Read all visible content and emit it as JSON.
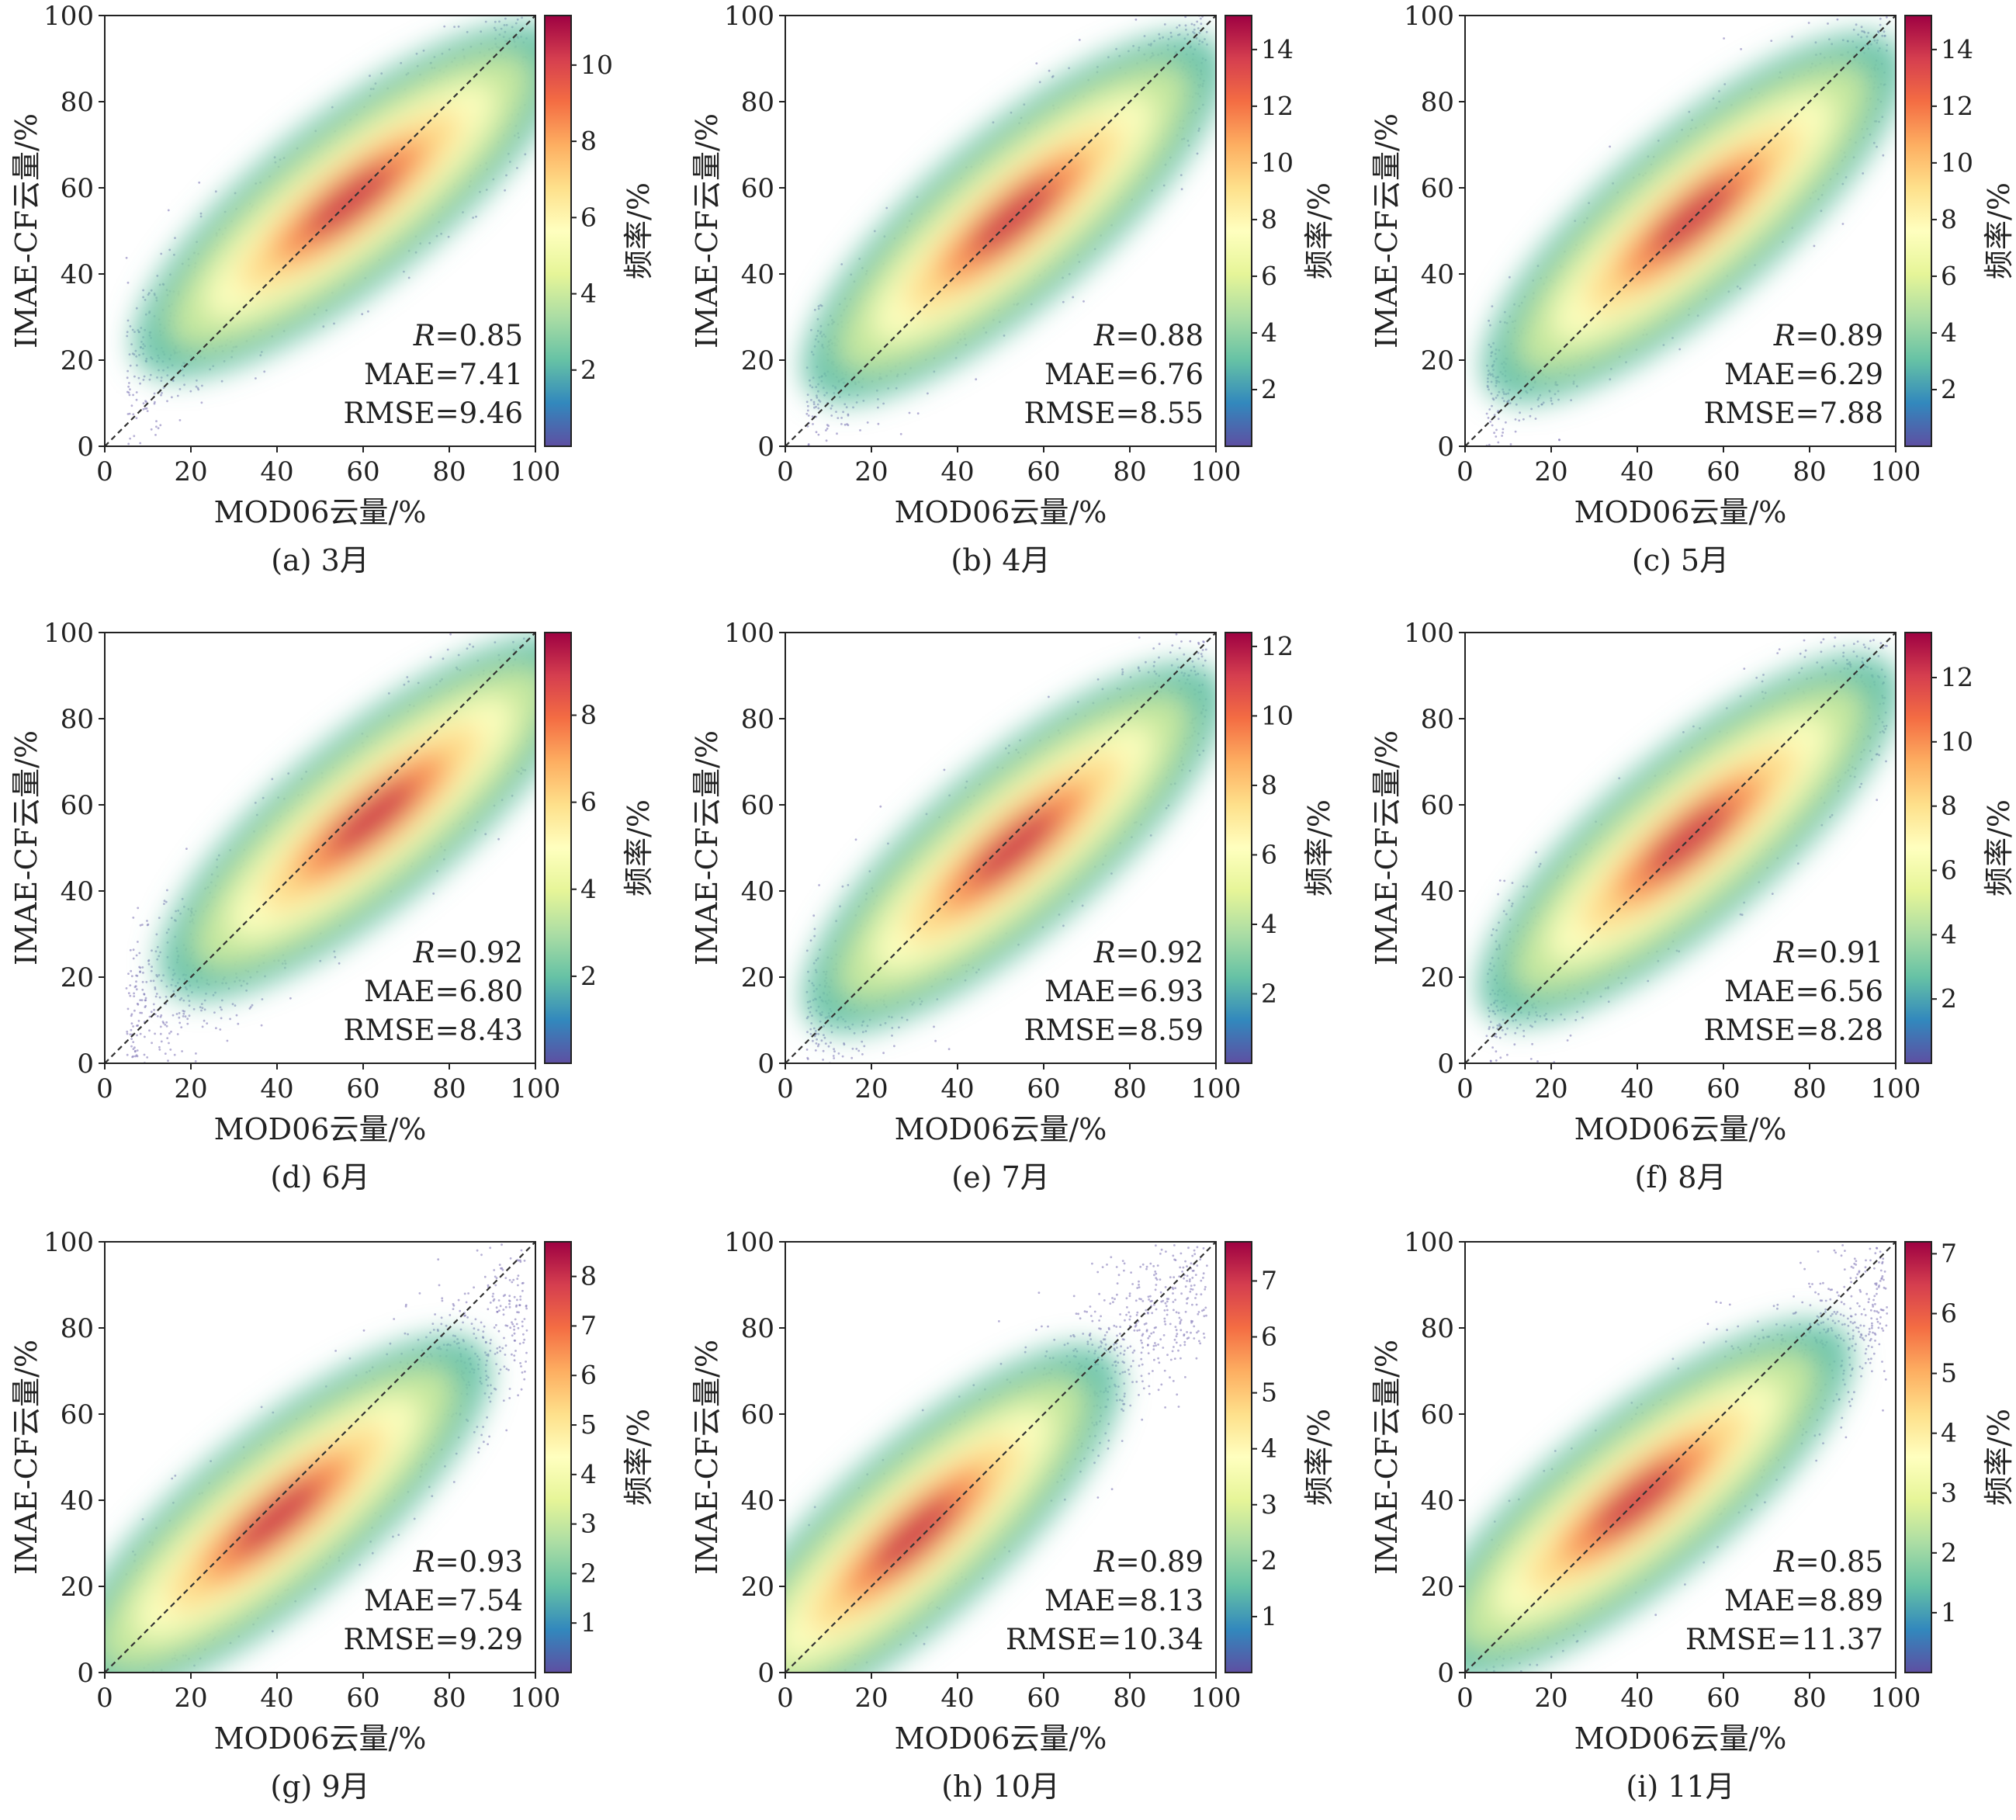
{
  "chart_data": [
    {
      "type": "scatter",
      "panel_label": "(a) 3月",
      "xlabel": "MOD06云量/%",
      "ylabel": "IMAE-CF云量/%",
      "xlim": [
        0,
        100
      ],
      "ylim": [
        0,
        100
      ],
      "xticks": [
        0,
        20,
        40,
        60,
        80,
        100
      ],
      "yticks": [
        0,
        20,
        40,
        60,
        80,
        100
      ],
      "reference_line": "1:1",
      "stats": {
        "R": "0.85",
        "MAE": "7.41",
        "RMSE": "9.46"
      },
      "colorbar": {
        "label": "频率/%",
        "min": 0,
        "max": 11.3,
        "ticks": [
          2,
          4,
          6,
          8,
          10
        ]
      },
      "density": {
        "peak_x": 57,
        "peak_y": 57,
        "slope": 0.78
      }
    },
    {
      "type": "scatter",
      "panel_label": "(b) 4月",
      "xlabel": "MOD06云量/%",
      "ylabel": "IMAE-CF云量/%",
      "xlim": [
        0,
        100
      ],
      "ylim": [
        0,
        100
      ],
      "xticks": [
        0,
        20,
        40,
        60,
        80,
        100
      ],
      "yticks": [
        0,
        20,
        40,
        60,
        80,
        100
      ],
      "reference_line": "1:1",
      "stats": {
        "R": "0.88",
        "MAE": "6.76",
        "RMSE": "8.55"
      },
      "colorbar": {
        "label": "频率/%",
        "min": 0,
        "max": 15.2,
        "ticks": [
          2,
          4,
          6,
          8,
          10,
          12,
          14
        ]
      },
      "density": {
        "peak_x": 53,
        "peak_y": 53,
        "slope": 0.85
      }
    },
    {
      "type": "scatter",
      "panel_label": "(c) 5月",
      "xlabel": "MOD06云量/%",
      "ylabel": "IMAE-CF云量/%",
      "xlim": [
        0,
        100
      ],
      "ylim": [
        0,
        100
      ],
      "xticks": [
        0,
        20,
        40,
        60,
        80,
        100
      ],
      "yticks": [
        0,
        20,
        40,
        60,
        80,
        100
      ],
      "reference_line": "1:1",
      "stats": {
        "R": "0.89",
        "MAE": "6.29",
        "RMSE": "7.88"
      },
      "colorbar": {
        "label": "频率/%",
        "min": 0,
        "max": 15.2,
        "ticks": [
          2,
          4,
          6,
          8,
          10,
          12,
          14
        ]
      },
      "density": {
        "peak_x": 53,
        "peak_y": 53,
        "slope": 0.85
      }
    },
    {
      "type": "scatter",
      "panel_label": "(d) 6月",
      "xlabel": "MOD06云量/%",
      "ylabel": "IMAE-CF云量/%",
      "xlim": [
        0,
        100
      ],
      "ylim": [
        0,
        100
      ],
      "xticks": [
        0,
        20,
        40,
        60,
        80,
        100
      ],
      "yticks": [
        0,
        20,
        40,
        60,
        80,
        100
      ],
      "reference_line": "1:1",
      "stats": {
        "R": "0.92",
        "MAE": "6.80",
        "RMSE": "8.43"
      },
      "colorbar": {
        "label": "频率/%",
        "min": 0,
        "max": 9.9,
        "ticks": [
          2,
          4,
          6,
          8
        ]
      },
      "density": {
        "peak_x": 62,
        "peak_y": 57,
        "slope": 0.82
      }
    },
    {
      "type": "scatter",
      "panel_label": "(e) 7月",
      "xlabel": "MOD06云量/%",
      "ylabel": "IMAE-CF云量/%",
      "xlim": [
        0,
        100
      ],
      "ylim": [
        0,
        100
      ],
      "xticks": [
        0,
        20,
        40,
        60,
        80,
        100
      ],
      "yticks": [
        0,
        20,
        40,
        60,
        80,
        100
      ],
      "reference_line": "1:1",
      "stats": {
        "R": "0.92",
        "MAE": "6.93",
        "RMSE": "8.59"
      },
      "colorbar": {
        "label": "频率/%",
        "min": 0,
        "max": 12.4,
        "ticks": [
          2,
          4,
          6,
          8,
          10,
          12
        ]
      },
      "density": {
        "peak_x": 53,
        "peak_y": 50,
        "slope": 0.85
      }
    },
    {
      "type": "scatter",
      "panel_label": "(f) 8月",
      "xlabel": "MOD06云量/%",
      "ylabel": "IMAE-CF云量/%",
      "xlim": [
        0,
        100
      ],
      "ylim": [
        0,
        100
      ],
      "xticks": [
        0,
        20,
        40,
        60,
        80,
        100
      ],
      "yticks": [
        0,
        20,
        40,
        60,
        80,
        100
      ],
      "reference_line": "1:1",
      "stats": {
        "R": "0.91",
        "MAE": "6.56",
        "RMSE": "8.28"
      },
      "colorbar": {
        "label": "频率/%",
        "min": 0,
        "max": 13.4,
        "ticks": [
          2,
          4,
          6,
          8,
          10,
          12
        ]
      },
      "density": {
        "peak_x": 52,
        "peak_y": 52,
        "slope": 0.85
      }
    },
    {
      "type": "scatter",
      "panel_label": "(g) 9月",
      "xlabel": "MOD06云量/%",
      "ylabel": "IMAE-CF云量/%",
      "xlim": [
        0,
        100
      ],
      "ylim": [
        0,
        100
      ],
      "xticks": [
        0,
        20,
        40,
        60,
        80,
        100
      ],
      "yticks": [
        0,
        20,
        40,
        60,
        80,
        100
      ],
      "reference_line": "1:1",
      "stats": {
        "R": "0.93",
        "MAE": "7.54",
        "RMSE": "9.29"
      },
      "colorbar": {
        "label": "频率/%",
        "min": 0,
        "max": 8.7,
        "ticks": [
          1,
          2,
          3,
          4,
          5,
          6,
          7,
          8
        ]
      },
      "density": {
        "peak_x": 40,
        "peak_y": 36,
        "slope": 0.82
      }
    },
    {
      "type": "scatter",
      "panel_label": "(h) 10月",
      "xlabel": "MOD06云量/%",
      "ylabel": "IMAE-CF云量/%",
      "xlim": [
        0,
        100
      ],
      "ylim": [
        0,
        100
      ],
      "xticks": [
        0,
        20,
        40,
        60,
        80,
        100
      ],
      "yticks": [
        0,
        20,
        40,
        60,
        80,
        100
      ],
      "reference_line": "1:1",
      "stats": {
        "R": "0.89",
        "MAE": "8.13",
        "RMSE": "10.34"
      },
      "colorbar": {
        "label": "频率/%",
        "min": 0,
        "max": 7.7,
        "ticks": [
          1,
          2,
          3,
          4,
          5,
          6,
          7
        ]
      },
      "density": {
        "peak_x": 30,
        "peak_y": 32,
        "slope": 0.9
      }
    },
    {
      "type": "scatter",
      "panel_label": "(i) 11月",
      "xlabel": "MOD06云量/%",
      "ylabel": "IMAE-CF云量/%",
      "xlim": [
        0,
        100
      ],
      "ylim": [
        0,
        100
      ],
      "xticks": [
        0,
        20,
        40,
        60,
        80,
        100
      ],
      "yticks": [
        0,
        20,
        40,
        60,
        80,
        100
      ],
      "reference_line": "1:1",
      "stats": {
        "R": "0.85",
        "MAE": "8.89",
        "RMSE": "11.37"
      },
      "colorbar": {
        "label": "频率/%",
        "min": 0,
        "max": 7.2,
        "ticks": [
          1,
          2,
          3,
          4,
          5,
          6,
          7
        ]
      },
      "density": {
        "peak_x": 40,
        "peak_y": 40,
        "slope": 0.8
      }
    }
  ],
  "colormap": [
    "#5e4fa2",
    "#3288bd",
    "#66c2a5",
    "#abdda4",
    "#e6f598",
    "#ffffbf",
    "#fee08b",
    "#fdae61",
    "#f46d43",
    "#d53e4f",
    "#9e0142"
  ],
  "text": {
    "stat_R_symbol": "R",
    "stat_MAE_prefix": "MAE=",
    "stat_RMSE_prefix": "RMSE="
  }
}
